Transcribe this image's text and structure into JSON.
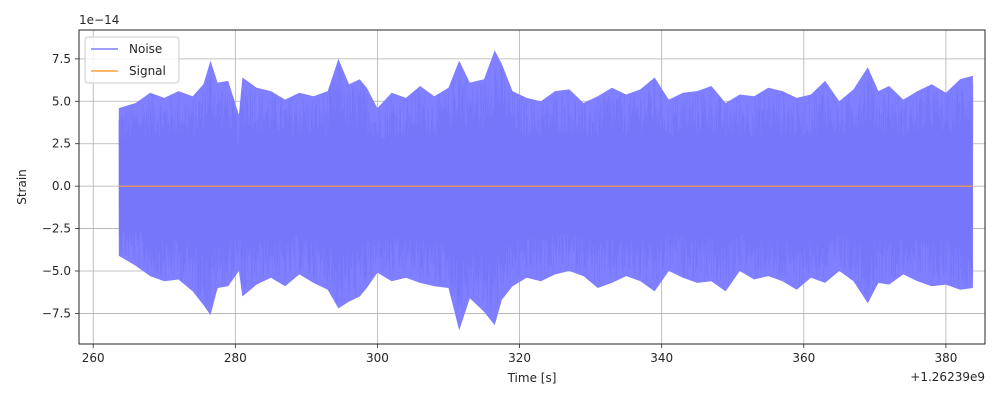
{
  "chart_data": {
    "type": "line",
    "title": "",
    "xlabel": "Time [s]",
    "ylabel": "Strain",
    "x_offset_label": "+1.26239e9",
    "y_scale_label": "1e−14",
    "xlim": [
      258,
      385.5
    ],
    "ylim": [
      -9.3,
      9.2
    ],
    "x_ticks": [
      260,
      280,
      300,
      320,
      340,
      360,
      380
    ],
    "x_tick_labels": [
      "260",
      "280",
      "300",
      "320",
      "340",
      "360",
      "380"
    ],
    "y_ticks": [
      -7.5,
      -5.0,
      -2.5,
      0.0,
      2.5,
      5.0,
      7.5
    ],
    "y_tick_labels": [
      "−7.5",
      "−5.0",
      "−2.5",
      "0.0",
      "2.5",
      "5.0",
      "7.5"
    ],
    "grid": true,
    "legend_position": "upper left",
    "series": [
      {
        "name": "Noise",
        "color": "#7f7fff",
        "x_range": [
          263.6,
          383.8
        ],
        "envelope": {
          "x": [
            263.6,
            266,
            268,
            270,
            272,
            274,
            275.5,
            276.5,
            277.5,
            279,
            280.5,
            281,
            283,
            285,
            287,
            289,
            291,
            293,
            294.5,
            296,
            297.5,
            298.5,
            300,
            302,
            304,
            306,
            308,
            310,
            311.5,
            313,
            315,
            316.5,
            317.5,
            319,
            321,
            323,
            325,
            327,
            329,
            331,
            333,
            335,
            337,
            339,
            341,
            343,
            345,
            347,
            349,
            351,
            353,
            355,
            357,
            359,
            361,
            363,
            365,
            367,
            369,
            370.5,
            372,
            374,
            376,
            378,
            380,
            382,
            383.8
          ],
          "upper": [
            4.6,
            4.9,
            5.5,
            5.2,
            5.6,
            5.3,
            6.0,
            7.4,
            6.1,
            6.2,
            4.2,
            6.4,
            5.8,
            5.6,
            5.1,
            5.5,
            5.3,
            5.6,
            7.5,
            6.0,
            6.3,
            5.8,
            4.6,
            5.5,
            5.2,
            5.9,
            5.3,
            5.8,
            7.4,
            6.1,
            6.3,
            8.0,
            7.2,
            5.6,
            5.2,
            5.0,
            5.6,
            5.7,
            4.9,
            5.3,
            5.8,
            5.4,
            5.7,
            6.4,
            5.1,
            5.5,
            5.6,
            5.9,
            4.9,
            5.4,
            5.3,
            5.8,
            5.6,
            5.2,
            5.4,
            6.2,
            5.0,
            5.7,
            7.0,
            5.6,
            5.9,
            5.1,
            5.6,
            6.0,
            5.5,
            6.3,
            6.5
          ],
          "lower": [
            -4.1,
            -4.7,
            -5.3,
            -5.6,
            -5.5,
            -6.2,
            -7.0,
            -7.6,
            -6.0,
            -5.9,
            -5.0,
            -6.5,
            -5.8,
            -5.4,
            -5.9,
            -5.2,
            -5.7,
            -6.1,
            -7.2,
            -6.8,
            -6.5,
            -6.0,
            -5.1,
            -5.6,
            -5.4,
            -5.7,
            -5.9,
            -6.0,
            -8.5,
            -6.6,
            -7.4,
            -8.2,
            -6.7,
            -5.9,
            -5.4,
            -5.6,
            -5.2,
            -5.0,
            -5.3,
            -6.0,
            -5.7,
            -5.3,
            -5.6,
            -6.2,
            -5.0,
            -5.4,
            -5.7,
            -5.6,
            -6.2,
            -5.0,
            -5.5,
            -5.3,
            -5.6,
            -6.1,
            -5.4,
            -5.7,
            -5.0,
            -5.6,
            -6.9,
            -5.7,
            -5.8,
            -5.2,
            -5.6,
            -5.9,
            -5.8,
            -6.1,
            -6.0
          ]
        }
      },
      {
        "name": "Signal",
        "color": "#ff9f3f",
        "x": [
          263.6,
          383.8
        ],
        "values": [
          0.0,
          0.0
        ]
      }
    ]
  }
}
